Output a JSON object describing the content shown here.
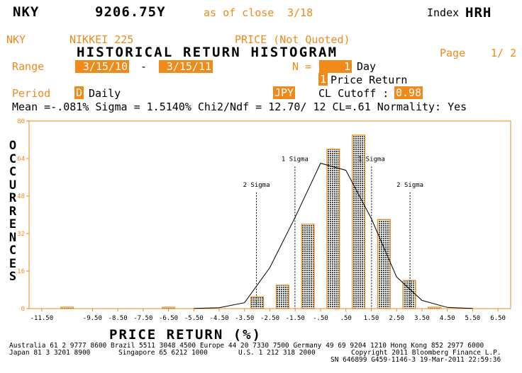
{
  "header": {
    "ticker": "NKY",
    "price": "9206.75Y",
    "as_of": "as of close",
    "date": "3/18",
    "index_label": "Index",
    "function": "HRH"
  },
  "subheader": {
    "ticker": "NKY",
    "name": "NIKKEI 225",
    "price_note": "PRICE (Not Quoted)",
    "title": "HISTORICAL RETURN HISTOGRAM",
    "page_label": "Page",
    "page": "1/ 2"
  },
  "controls": {
    "range_label": "Range",
    "start_date": "3/15/10",
    "dash": "-",
    "end_date": "3/15/11",
    "n_label": "N =",
    "n_value": "1",
    "n_unit": "Day",
    "type_code": "1",
    "type_label": "Price Return",
    "period_label": "Period",
    "period_code": "D",
    "period_value": "Daily",
    "currency": "JPY",
    "cl_label": "CL Cutoff :",
    "cl_value": "0.98"
  },
  "stats": "Mean  =-.081%  Sigma = 1.5140%  Chi2/Ndf = 12.70/ 12   CL=.61  Normality: Yes",
  "y_axis_title": "OCCURRENCES",
  "x_axis_title": "PRICE RETURN (%)",
  "chart_data": {
    "type": "bar",
    "xlabel": "PRICE RETURN (%)",
    "ylabel": "OCCURRENCES",
    "xlim": [
      -12,
      7
    ],
    "ylim": [
      0,
      80
    ],
    "y_ticks": [
      0,
      16,
      32,
      48,
      64,
      80
    ],
    "x_ticks": [
      {
        "v": -11.5,
        "label": "-11.50"
      },
      {
        "v": -9.5,
        "label": "-9.50"
      },
      {
        "v": -8.5,
        "label": "-8.50"
      },
      {
        "v": -7.5,
        "label": "-7.50"
      },
      {
        "v": -6.5,
        "label": "-6.50"
      },
      {
        "v": -5.5,
        "label": "-5.50"
      },
      {
        "v": -4.5,
        "label": "-4.50"
      },
      {
        "v": -3.5,
        "label": "-3.50"
      },
      {
        "v": -2.5,
        "label": "-2.50"
      },
      {
        "v": -1.5,
        "label": "-1.50"
      },
      {
        "v": -0.5,
        "label": "-.50"
      },
      {
        "v": 0.5,
        "label": ".50"
      },
      {
        "v": 1.5,
        "label": "1.50"
      },
      {
        "v": 2.5,
        "label": "2.50"
      },
      {
        "v": 3.5,
        "label": "3.50"
      },
      {
        "v": 4.5,
        "label": "4.50"
      },
      {
        "v": 5.5,
        "label": "5.50"
      },
      {
        "v": 6.5,
        "label": "6.50"
      }
    ],
    "bins": [
      {
        "x": -10.5,
        "value": 0
      },
      {
        "x": -6.5,
        "value": 0
      },
      {
        "x": -3,
        "value": 5
      },
      {
        "x": -2,
        "value": 10
      },
      {
        "x": -1,
        "value": 36
      },
      {
        "x": 0,
        "value": 68
      },
      {
        "x": 1,
        "value": 74
      },
      {
        "x": 2,
        "value": 38
      },
      {
        "x": 3,
        "value": 12
      },
      {
        "x": 4,
        "value": 0
      }
    ],
    "bin_width": 0.5,
    "normal_curve": [
      [
        -5.5,
        0.1
      ],
      [
        -4.5,
        0.4
      ],
      [
        -3.5,
        2.5
      ],
      [
        -2.5,
        17.5
      ],
      [
        -1.5,
        39
      ],
      [
        -0.5,
        62
      ],
      [
        0.5,
        59
      ],
      [
        1.5,
        38.5
      ],
      [
        2.5,
        13.5
      ],
      [
        3.5,
        3.5
      ],
      [
        4.5,
        0.5
      ],
      [
        5.5,
        0.1
      ]
    ],
    "sigma_lines": [
      {
        "x": -3.03,
        "label": "2 Sigma",
        "label_y": 52
      },
      {
        "x": -1.51,
        "label": "1 Sigma",
        "label_y": 63
      },
      {
        "x": 1.51,
        "label": "1 Sigma",
        "label_y": 63
      },
      {
        "x": 3.03,
        "label": "2 Sigma",
        "label_y": 52
      }
    ],
    "colors": {
      "axis": "#f08a1a",
      "bar": "#555555",
      "line": "#000000"
    }
  },
  "footer": {
    "line1": "Australia 61 2 9777 8600 Brazil 5511 3048 4500 Europe 44 20 7330 7500 Germany 49 69 9204 1210 Hong Kong 852 2977 6000",
    "line2_left": "Japan 81 3 3201 8900",
    "line2_mid1": "Singapore 65 6212 1000",
    "line2_mid2": "U.S. 1 212 318 2000",
    "line2_right": "Copyright 2011 Bloomberg Finance L.P.",
    "line3": "SN 646899 G459-1146-3 19-Mar-2011 22:59:36"
  }
}
